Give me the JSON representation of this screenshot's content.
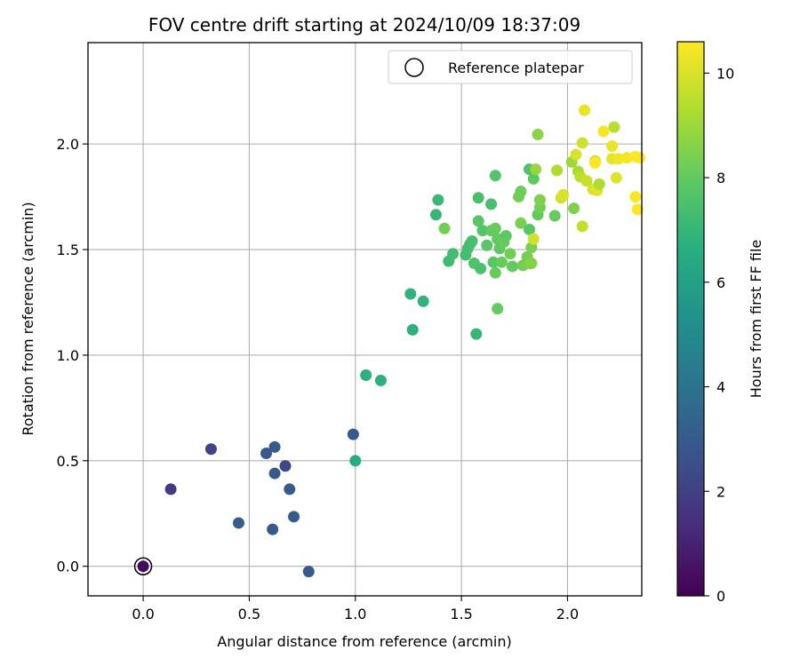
{
  "chart_data": {
    "type": "scatter",
    "title": "FOV centre drift starting at 2024/10/09 18:37:09",
    "xlabel": "Angular distance from reference (arcmin)",
    "ylabel": "Rotation from reference (arcmin)",
    "xlim": [
      -0.26,
      2.35
    ],
    "ylim": [
      -0.14,
      2.48
    ],
    "x_ticks": [
      "0.0",
      "0.5",
      "1.0",
      "1.5",
      "2.0"
    ],
    "y_ticks": [
      "0.0",
      "0.5",
      "1.0",
      "1.5",
      "2.0"
    ],
    "grid": true,
    "legend": {
      "position": "top-right",
      "entries": [
        "Reference platepar"
      ]
    },
    "reference_point": {
      "x": 0.0,
      "y": 0.0,
      "label": "Reference platepar"
    },
    "colorbar": {
      "label": "Hours from first FF file",
      "colormap": "viridis",
      "range": [
        0,
        10.6
      ],
      "ticks": [
        "0",
        "2",
        "4",
        "6",
        "8",
        "10"
      ]
    },
    "points": [
      {
        "x": 0.0,
        "y": 0.0,
        "c": 0.3
      },
      {
        "x": 0.13,
        "y": 0.365,
        "c": 1.8
      },
      {
        "x": 0.32,
        "y": 0.555,
        "c": 2.1
      },
      {
        "x": 0.45,
        "y": 0.205,
        "c": 3.1
      },
      {
        "x": 0.58,
        "y": 0.535,
        "c": 3.0
      },
      {
        "x": 0.61,
        "y": 0.175,
        "c": 3.0
      },
      {
        "x": 0.62,
        "y": 0.565,
        "c": 3.0
      },
      {
        "x": 0.62,
        "y": 0.44,
        "c": 3.0
      },
      {
        "x": 0.67,
        "y": 0.475,
        "c": 2.3
      },
      {
        "x": 0.69,
        "y": 0.365,
        "c": 3.0
      },
      {
        "x": 0.71,
        "y": 0.235,
        "c": 3.0
      },
      {
        "x": 0.78,
        "y": -0.025,
        "c": 3.0
      },
      {
        "x": 0.99,
        "y": 0.625,
        "c": 3.0
      },
      {
        "x": 1.0,
        "y": 0.5,
        "c": 6.6
      },
      {
        "x": 1.05,
        "y": 0.905,
        "c": 6.7
      },
      {
        "x": 1.12,
        "y": 0.88,
        "c": 6.7
      },
      {
        "x": 1.26,
        "y": 1.29,
        "c": 6.8
      },
      {
        "x": 1.27,
        "y": 1.12,
        "c": 6.7
      },
      {
        "x": 1.32,
        "y": 1.255,
        "c": 6.8
      },
      {
        "x": 1.38,
        "y": 1.665,
        "c": 7.0
      },
      {
        "x": 1.39,
        "y": 1.735,
        "c": 7.1
      },
      {
        "x": 1.42,
        "y": 1.6,
        "c": 8.3
      },
      {
        "x": 1.44,
        "y": 1.445,
        "c": 7.2
      },
      {
        "x": 1.46,
        "y": 1.48,
        "c": 7.3
      },
      {
        "x": 1.52,
        "y": 1.475,
        "c": 7.3
      },
      {
        "x": 1.53,
        "y": 1.505,
        "c": 7.4
      },
      {
        "x": 1.54,
        "y": 1.525,
        "c": 7.3
      },
      {
        "x": 1.55,
        "y": 1.54,
        "c": 7.4
      },
      {
        "x": 1.56,
        "y": 1.435,
        "c": 7.6
      },
      {
        "x": 1.57,
        "y": 1.1,
        "c": 7.0
      },
      {
        "x": 1.58,
        "y": 1.745,
        "c": 7.4
      },
      {
        "x": 1.58,
        "y": 1.635,
        "c": 7.8
      },
      {
        "x": 1.59,
        "y": 1.41,
        "c": 7.5
      },
      {
        "x": 1.6,
        "y": 1.59,
        "c": 7.7
      },
      {
        "x": 1.62,
        "y": 1.52,
        "c": 7.8
      },
      {
        "x": 1.64,
        "y": 1.59,
        "c": 8.0
      },
      {
        "x": 1.64,
        "y": 1.715,
        "c": 7.4
      },
      {
        "x": 1.65,
        "y": 1.44,
        "c": 7.8
      },
      {
        "x": 1.66,
        "y": 1.6,
        "c": 8.1
      },
      {
        "x": 1.66,
        "y": 1.85,
        "c": 7.7
      },
      {
        "x": 1.66,
        "y": 1.39,
        "c": 8.1
      },
      {
        "x": 1.67,
        "y": 1.22,
        "c": 8.0
      },
      {
        "x": 1.67,
        "y": 1.55,
        "c": 8.0
      },
      {
        "x": 1.68,
        "y": 1.505,
        "c": 7.9
      },
      {
        "x": 1.69,
        "y": 1.44,
        "c": 8.1
      },
      {
        "x": 1.7,
        "y": 1.535,
        "c": 8.1
      },
      {
        "x": 1.71,
        "y": 1.565,
        "c": 7.9
      },
      {
        "x": 1.73,
        "y": 1.48,
        "c": 8.3
      },
      {
        "x": 1.74,
        "y": 1.42,
        "c": 8.0
      },
      {
        "x": 1.77,
        "y": 1.75,
        "c": 8.3
      },
      {
        "x": 1.78,
        "y": 1.775,
        "c": 8.2
      },
      {
        "x": 1.78,
        "y": 1.625,
        "c": 8.4
      },
      {
        "x": 1.79,
        "y": 1.425,
        "c": 8.3
      },
      {
        "x": 1.81,
        "y": 1.465,
        "c": 8.3
      },
      {
        "x": 1.82,
        "y": 1.435,
        "c": 8.5
      },
      {
        "x": 1.82,
        "y": 1.595,
        "c": 7.8
      },
      {
        "x": 1.82,
        "y": 1.88,
        "c": 7.6
      },
      {
        "x": 1.83,
        "y": 1.51,
        "c": 8.4
      },
      {
        "x": 1.83,
        "y": 1.435,
        "c": 8.6
      },
      {
        "x": 1.84,
        "y": 1.55,
        "c": 9.8
      },
      {
        "x": 1.84,
        "y": 1.835,
        "c": 7.9
      },
      {
        "x": 1.85,
        "y": 1.88,
        "c": 8.9
      },
      {
        "x": 1.86,
        "y": 1.665,
        "c": 8.0
      },
      {
        "x": 1.86,
        "y": 2.045,
        "c": 8.7
      },
      {
        "x": 1.87,
        "y": 1.7,
        "c": 8.3
      },
      {
        "x": 1.87,
        "y": 1.735,
        "c": 8.5
      },
      {
        "x": 1.94,
        "y": 1.66,
        "c": 8.1
      },
      {
        "x": 1.95,
        "y": 1.875,
        "c": 9.3
      },
      {
        "x": 1.97,
        "y": 1.745,
        "c": 9.8
      },
      {
        "x": 1.98,
        "y": 1.76,
        "c": 10.0
      },
      {
        "x": 2.02,
        "y": 1.915,
        "c": 9.0
      },
      {
        "x": 2.03,
        "y": 1.695,
        "c": 8.5
      },
      {
        "x": 2.04,
        "y": 1.95,
        "c": 10.0
      },
      {
        "x": 2.05,
        "y": 1.87,
        "c": 9.2
      },
      {
        "x": 2.06,
        "y": 1.845,
        "c": 9.5
      },
      {
        "x": 2.07,
        "y": 2.005,
        "c": 9.8
      },
      {
        "x": 2.07,
        "y": 1.61,
        "c": 9.6
      },
      {
        "x": 2.08,
        "y": 2.16,
        "c": 10.3
      },
      {
        "x": 2.09,
        "y": 1.825,
        "c": 9.7
      },
      {
        "x": 2.12,
        "y": 1.785,
        "c": 10.0
      },
      {
        "x": 2.13,
        "y": 1.92,
        "c": 10.0
      },
      {
        "x": 2.13,
        "y": 1.91,
        "c": 10.6
      },
      {
        "x": 2.14,
        "y": 1.78,
        "c": 10.1
      },
      {
        "x": 2.15,
        "y": 1.81,
        "c": 9.3
      },
      {
        "x": 2.17,
        "y": 2.06,
        "c": 10.5
      },
      {
        "x": 2.21,
        "y": 1.99,
        "c": 10.3
      },
      {
        "x": 2.21,
        "y": 1.93,
        "c": 10.2
      },
      {
        "x": 2.22,
        "y": 2.08,
        "c": 9.5
      },
      {
        "x": 2.23,
        "y": 1.84,
        "c": 10.1
      },
      {
        "x": 2.24,
        "y": 1.93,
        "c": 10.4
      },
      {
        "x": 2.28,
        "y": 1.935,
        "c": 10.5
      },
      {
        "x": 2.32,
        "y": 1.94,
        "c": 10.6
      },
      {
        "x": 2.32,
        "y": 1.75,
        "c": 10.5
      },
      {
        "x": 2.33,
        "y": 1.69,
        "c": 10.6
      },
      {
        "x": 2.34,
        "y": 1.935,
        "c": 10.6
      }
    ]
  }
}
